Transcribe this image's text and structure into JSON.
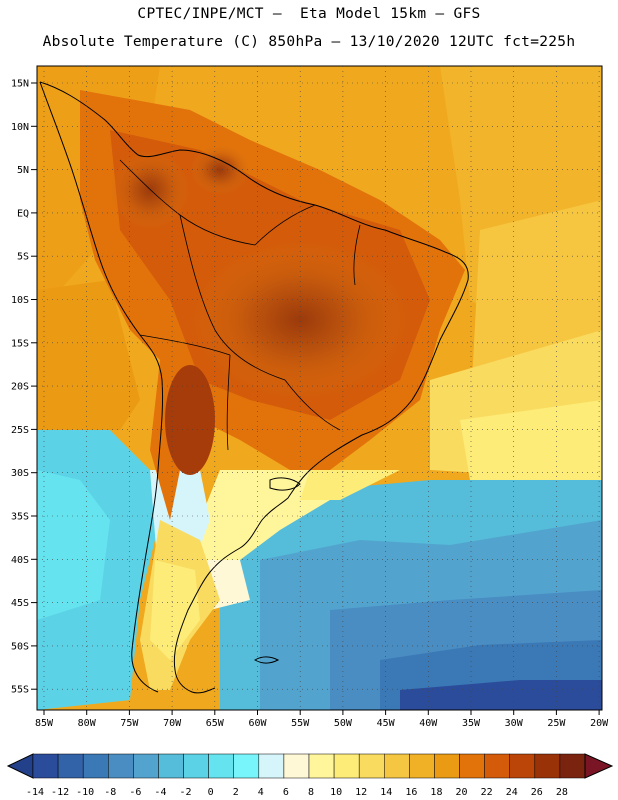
{
  "header": {
    "line1": "CPTEC/INPE/MCT –  Eta Model 15km – GFS",
    "line2": "Absolute Temperature (C) 850hPa – 13/10/2020 12UTC fct=225h"
  },
  "axes": {
    "lat_labels": [
      "15N",
      "10N",
      "5N",
      "EQ",
      "5S",
      "10S",
      "15S",
      "20S",
      "25S",
      "30S",
      "35S",
      "40S",
      "45S",
      "50S",
      "55S"
    ],
    "lon_labels": [
      "85W",
      "80W",
      "75W",
      "70W",
      "65W",
      "60W",
      "55W",
      "50W",
      "45W",
      "40W",
      "35W",
      "30W",
      "25W",
      "20W"
    ]
  },
  "colorbar": {
    "ticks": [
      "-14",
      "-12",
      "-10",
      "-8",
      "-6",
      "-4",
      "-2",
      "0",
      "2",
      "4",
      "6",
      "8",
      "10",
      "12",
      "14",
      "16",
      "18",
      "20",
      "22",
      "24",
      "26",
      "28"
    ],
    "colors": [
      "#2b4c9b",
      "#3262a8",
      "#3b78b6",
      "#4a8dc2",
      "#52a4cf",
      "#55bcd9",
      "#5cd2e6",
      "#65e4ef",
      "#78f5fb",
      "#d6f5fb",
      "#fff8d6",
      "#fff59a",
      "#fdec78",
      "#f9db60",
      "#f4c642",
      "#f0b127",
      "#eb9a14",
      "#e2730b",
      "#d35b0a",
      "#bb4509",
      "#9a3208",
      "#7a2410"
    ],
    "low_color": "#23408a",
    "high_color": "#7a1525"
  }
}
